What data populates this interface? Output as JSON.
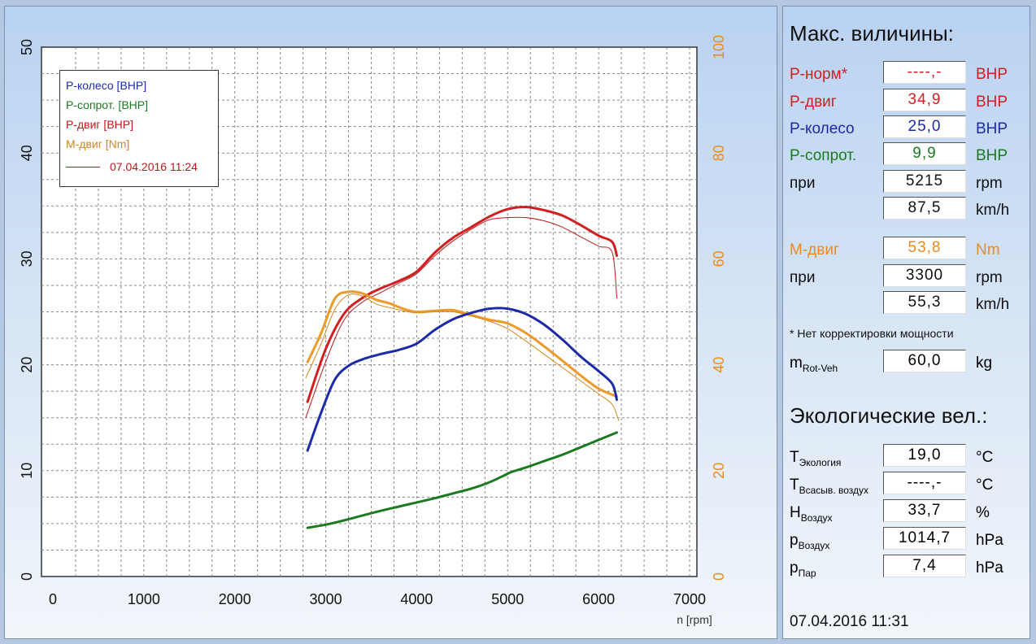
{
  "chart_data": {
    "type": "line",
    "xlabel": "n [rpm]",
    "xlim": [
      0,
      7000
    ],
    "x_ticks": [
      "0",
      "1000",
      "2000",
      "3000",
      "4000",
      "5000",
      "6000",
      "7000"
    ],
    "ylim_left": [
      0,
      50
    ],
    "y_left_ticks": [
      "0",
      "10",
      "20",
      "30",
      "40",
      "50"
    ],
    "ylim_right": [
      0,
      100
    ],
    "y_right_ticks": [
      "0",
      "20",
      "40",
      "60",
      "80",
      "100"
    ],
    "grid": true,
    "legend": {
      "position": "top-left",
      "entries": [
        {
          "label": "P-колесо [BHP]",
          "color": "#1c2aa8"
        },
        {
          "label": "P-сопрот. [BHP]",
          "color": "#1b7a1f"
        },
        {
          "label": "P-двиг [BHP]",
          "color": "#c0161c"
        },
        {
          "label": "M-двиг [Nm]",
          "color": "#e08a1c"
        }
      ],
      "date_entry": "07.04.2016 11:24"
    },
    "series": [
      {
        "name": "P-двиг [BHP]",
        "color": "#d01f1f",
        "width": 3,
        "axis": "left",
        "x": [
          2800,
          3000,
          3200,
          3400,
          3600,
          3800,
          4000,
          4200,
          4400,
          4600,
          4800,
          5000,
          5200,
          5400,
          5600,
          5800,
          6000,
          6150,
          6200
        ],
        "y": [
          16.5,
          21.5,
          24.8,
          26.3,
          27.2,
          27.9,
          28.8,
          30.6,
          32,
          33,
          34,
          34.7,
          34.9,
          34.6,
          34.1,
          33.2,
          32.2,
          31.6,
          30.3
        ]
      },
      {
        "name": "P-двиг ref",
        "color": "#c0161c",
        "width": 1,
        "axis": "left",
        "x": [
          2780,
          3000,
          3200,
          3400,
          3600,
          3800,
          4000,
          4200,
          4400,
          4600,
          4800,
          5000,
          5200,
          5400,
          5600,
          5800,
          6000,
          6150,
          6200
        ],
        "y": [
          15,
          20.3,
          24.2,
          25.9,
          26.8,
          27.7,
          28.6,
          30.3,
          31.7,
          32.8,
          33.7,
          33.9,
          33.9,
          33.6,
          33,
          32.1,
          31.2,
          30.6,
          26.3
        ]
      },
      {
        "name": "M-двиг [Nm]",
        "color": "#ec9a2a",
        "width": 3,
        "axis": "right",
        "x": [
          2800,
          2950,
          3100,
          3250,
          3400,
          3550,
          3700,
          3850,
          4000,
          4200,
          4400,
          4600,
          4800,
          5000,
          5200,
          5400,
          5600,
          5800,
          6000,
          6200
        ],
        "y": [
          40.5,
          46,
          52.5,
          53.8,
          53.5,
          52.3,
          51.6,
          50.6,
          50,
          50.2,
          50.3,
          49.4,
          48.5,
          47.8,
          46,
          43.5,
          40.8,
          38,
          35.5,
          34
        ]
      },
      {
        "name": "M-двиг ref",
        "color": "#d4861a",
        "width": 1,
        "axis": "right",
        "x": [
          2780,
          2950,
          3100,
          3250,
          3400,
          3550,
          3700,
          3850,
          4000,
          4200,
          4400,
          4600,
          4800,
          5000,
          5200,
          5400,
          5600,
          5800,
          6000,
          6150,
          6220
        ],
        "y": [
          37.5,
          44,
          50.5,
          53.2,
          53,
          51.5,
          50.8,
          50.2,
          49.8,
          50,
          50,
          49.2,
          48.2,
          46.8,
          44.5,
          42,
          39.5,
          37,
          34.5,
          32.5,
          29.5
        ]
      },
      {
        "name": "P-колесо [BHP]",
        "color": "#1c2aa8",
        "width": 3,
        "axis": "left",
        "x": [
          2800,
          2950,
          3100,
          3250,
          3400,
          3600,
          3800,
          4000,
          4200,
          4400,
          4600,
          4800,
          5000,
          5200,
          5400,
          5600,
          5800,
          6000,
          6150,
          6200
        ],
        "y": [
          11.9,
          15.5,
          18.6,
          19.9,
          20.5,
          21,
          21.4,
          22,
          23.3,
          24.3,
          24.9,
          25.3,
          25.3,
          24.8,
          23.8,
          22.4,
          20.8,
          19.4,
          18.2,
          16.7
        ]
      },
      {
        "name": "P-сопрот. [BHP]",
        "color": "#1b7a1f",
        "width": 3,
        "axis": "left",
        "x": [
          2800,
          3000,
          3200,
          3400,
          3600,
          3800,
          4000,
          4200,
          4400,
          4600,
          4800,
          4950,
          5050,
          5200,
          5400,
          5600,
          5800,
          6000,
          6200
        ],
        "y": [
          4.6,
          4.9,
          5.3,
          5.75,
          6.2,
          6.6,
          7,
          7.4,
          7.85,
          8.3,
          8.9,
          9.5,
          9.9,
          10.3,
          10.9,
          11.5,
          12.2,
          12.9,
          13.6
        ]
      }
    ]
  },
  "panel": {
    "max_title": "Макс. виличины:",
    "rows": [
      {
        "label": "P-норм*",
        "value": "----,-",
        "unit": "BHP",
        "color": "#d01f1f"
      },
      {
        "label": "P-двиг",
        "value": "34,9",
        "unit": "BHP",
        "color": "#d01f1f"
      },
      {
        "label": "P-колесо",
        "value": "25,0",
        "unit": "BHP",
        "color": "#1c2aa8"
      },
      {
        "label": "P-сопрот.",
        "value": "9,9",
        "unit": "BHP",
        "color": "#1b7a1f"
      },
      {
        "label": "при",
        "value": "5215",
        "unit": "rpm",
        "color": "#111111"
      },
      {
        "label": "",
        "value": "87,5",
        "unit": "km/h",
        "color": "#111111"
      },
      {
        "label": "M-двиг",
        "value": "53,8",
        "unit": "Nm",
        "color": "#ec8a1c"
      },
      {
        "label": "при",
        "value": "3300",
        "unit": "rpm",
        "color": "#111111"
      },
      {
        "label": "",
        "value": "55,3",
        "unit": "km/h",
        "color": "#111111"
      }
    ],
    "note": "* Нет корректировки мощности",
    "mass": {
      "label": "m",
      "sub": "Rot-Veh",
      "value": "60,0",
      "unit": "kg"
    },
    "eco_title": "Экологические вел.:",
    "eco_rows": [
      {
        "label": "T",
        "sub": "Экология",
        "value": "19,0",
        "unit": "°C"
      },
      {
        "label": "T",
        "sub": "Всасыв. воздух",
        "value": "----,-",
        "unit": "°C"
      },
      {
        "label": "H",
        "sub": "Воздух",
        "value": "33,7",
        "unit": "%"
      },
      {
        "label": "p",
        "sub": "Воздух",
        "value": "1014,7",
        "unit": "hPa"
      },
      {
        "label": "p",
        "sub": "Пар",
        "value": "7,4",
        "unit": "hPa"
      }
    ],
    "datetime": "07.04.2016  11:31"
  }
}
